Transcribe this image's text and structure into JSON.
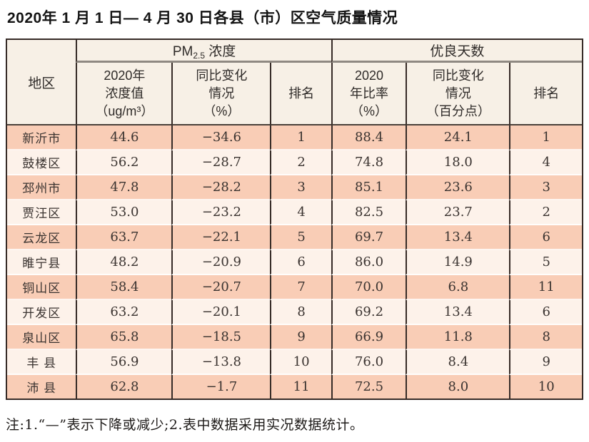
{
  "title": "2020年 1 月 1 日— 4 月 30 日各县（市）区空气质量情况",
  "note": "注:1.“—”表示下降或减少;2.表中数据采用实况数据统计。",
  "colors": {
    "row_odd": "#f9cdb6",
    "row_even": "#fdf2ea",
    "header_bg": "#f7f0e6",
    "border_dark": "#362b27",
    "border_gray": "#8f8982",
    "text": "#2e2a28"
  },
  "table": {
    "region_header": "地区",
    "group_pm": {
      "pm": "PM",
      "sub": "2.5",
      "label": " 浓度"
    },
    "group_good": "优良天数",
    "sub": {
      "pm_value": [
        "2020年",
        "浓度值",
        "（ug/m³）"
      ],
      "pm_change": [
        "同比变化",
        "情况",
        "（%）"
      ],
      "pm_rank": "排名",
      "rate": [
        "2020",
        "年比率",
        "（%）"
      ],
      "rate_change": [
        "同比变化",
        "情况",
        "（百分点）"
      ],
      "rate_rank": "排名"
    },
    "rows": [
      {
        "region": "新沂市",
        "pm_value": "44.6",
        "pm_change": "−34.6",
        "pm_rank": "1",
        "rate": "88.4",
        "rate_change": "24.1",
        "rate_rank": "1"
      },
      {
        "region": "鼓楼区",
        "pm_value": "56.2",
        "pm_change": "−28.7",
        "pm_rank": "2",
        "rate": "74.8",
        "rate_change": "18.0",
        "rate_rank": "4"
      },
      {
        "region": "邳州市",
        "pm_value": "47.8",
        "pm_change": "−28.2",
        "pm_rank": "3",
        "rate": "85.1",
        "rate_change": "23.6",
        "rate_rank": "3"
      },
      {
        "region": "贾汪区",
        "pm_value": "53.0",
        "pm_change": "−23.2",
        "pm_rank": "4",
        "rate": "82.5",
        "rate_change": "23.7",
        "rate_rank": "2"
      },
      {
        "region": "云龙区",
        "pm_value": "63.7",
        "pm_change": "−22.1",
        "pm_rank": "5",
        "rate": "69.7",
        "rate_change": "13.4",
        "rate_rank": "6"
      },
      {
        "region": "睢宁县",
        "pm_value": "48.2",
        "pm_change": "−20.9",
        "pm_rank": "6",
        "rate": "86.0",
        "rate_change": "14.9",
        "rate_rank": "5"
      },
      {
        "region": "铜山区",
        "pm_value": "58.4",
        "pm_change": "−20.7",
        "pm_rank": "7",
        "rate": "70.0",
        "rate_change": "6.8",
        "rate_rank": "11"
      },
      {
        "region": "开发区",
        "pm_value": "63.2",
        "pm_change": "−20.1",
        "pm_rank": "8",
        "rate": "69.2",
        "rate_change": "13.4",
        "rate_rank": "6"
      },
      {
        "region": "泉山区",
        "pm_value": "65.8",
        "pm_change": "−18.5",
        "pm_rank": "9",
        "rate": "66.9",
        "rate_change": "11.8",
        "rate_rank": "8"
      },
      {
        "region": "丰 县",
        "pm_value": "56.9",
        "pm_change": "−13.8",
        "pm_rank": "10",
        "rate": "76.0",
        "rate_change": "8.4",
        "rate_rank": "9"
      },
      {
        "region": "沛 县",
        "pm_value": "62.8",
        "pm_change": "−1.7",
        "pm_rank": "11",
        "rate": "72.5",
        "rate_change": "8.0",
        "rate_rank": "10"
      }
    ]
  }
}
